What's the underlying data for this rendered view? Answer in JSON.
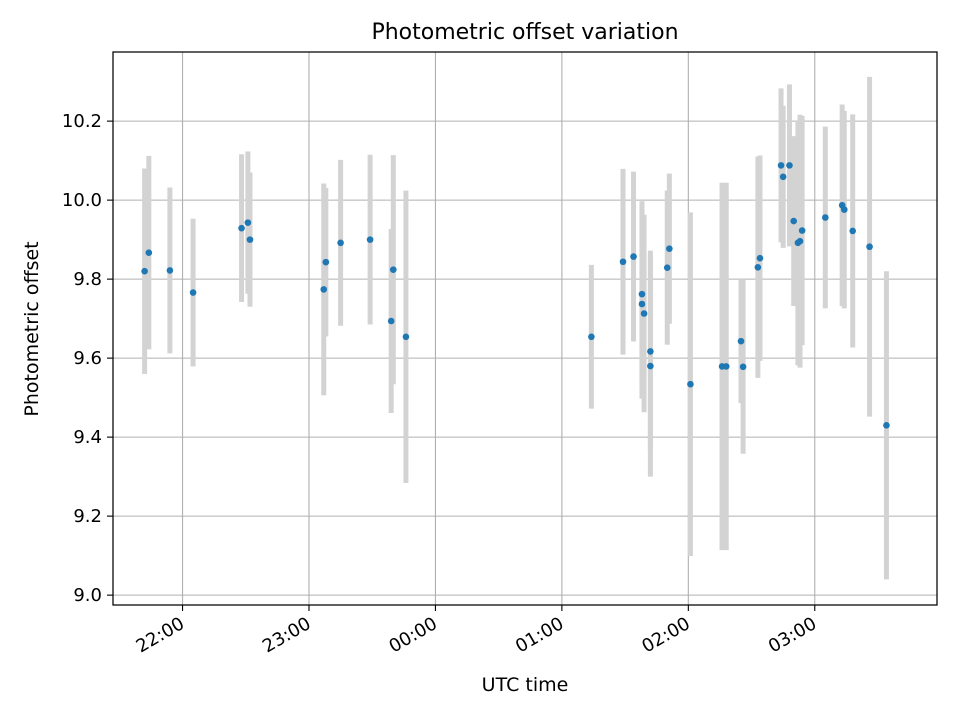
{
  "chart_data": {
    "type": "scatter",
    "title": "Photometric offset variation",
    "xlabel": "UTC time",
    "ylabel": "Photometric offset",
    "x_unit": "HH:MM",
    "x_range": [
      "21:27",
      "03:58"
    ],
    "ylim": [
      8.975,
      10.375
    ],
    "grid": true,
    "x_ticks": [
      "22:00",
      "23:00",
      "00:00",
      "01:00",
      "02:00",
      "03:00"
    ],
    "y_ticks": [
      "9.0",
      "9.2",
      "9.4",
      "9.6",
      "9.8",
      "10.0",
      "10.2"
    ],
    "colors": {
      "point": "#1f77b4",
      "errorbar": "#d3d3d3",
      "grid": "#b0b0b0"
    },
    "points": [
      {
        "x": "21:42",
        "y": 9.82,
        "err": 0.26
      },
      {
        "x": "21:44",
        "y": 9.867,
        "err": 0.245
      },
      {
        "x": "21:54",
        "y": 9.822,
        "err": 0.21
      },
      {
        "x": "22:05",
        "y": 9.766,
        "err": 0.187
      },
      {
        "x": "22:28",
        "y": 9.929,
        "err": 0.187
      },
      {
        "x": "22:31",
        "y": 9.943,
        "err": 0.18
      },
      {
        "x": "22:32",
        "y": 9.9,
        "err": 0.17
      },
      {
        "x": "23:07",
        "y": 9.774,
        "err": 0.268
      },
      {
        "x": "23:08",
        "y": 9.843,
        "err": 0.188
      },
      {
        "x": "23:15",
        "y": 9.892,
        "err": 0.21
      },
      {
        "x": "23:29",
        "y": 9.9,
        "err": 0.215
      },
      {
        "x": "23:39",
        "y": 9.694,
        "err": 0.233
      },
      {
        "x": "23:40",
        "y": 9.824,
        "err": 0.29
      },
      {
        "x": "23:46",
        "y": 9.654,
        "err": 0.37
      },
      {
        "x": "01:14",
        "y": 9.654,
        "err": 0.182
      },
      {
        "x": "01:29",
        "y": 9.844,
        "err": 0.235
      },
      {
        "x": "01:34",
        "y": 9.857,
        "err": 0.215
      },
      {
        "x": "01:38",
        "y": 9.762,
        "err": 0.235
      },
      {
        "x": "01:38",
        "y": 9.737,
        "err": 0.24
      },
      {
        "x": "01:39",
        "y": 9.713,
        "err": 0.25
      },
      {
        "x": "01:42",
        "y": 9.617,
        "err": 0.255
      },
      {
        "x": "01:42",
        "y": 9.58,
        "err": 0.28
      },
      {
        "x": "01:50",
        "y": 9.829,
        "err": 0.195
      },
      {
        "x": "01:51",
        "y": 9.877,
        "err": 0.19
      },
      {
        "x": "02:01",
        "y": 9.534,
        "err": 0.435
      },
      {
        "x": "02:16",
        "y": 9.579,
        "err": 0.465
      },
      {
        "x": "02:18",
        "y": 9.579,
        "err": 0.465
      },
      {
        "x": "02:25",
        "y": 9.643,
        "err": 0.157
      },
      {
        "x": "02:26",
        "y": 9.578,
        "err": 0.22
      },
      {
        "x": "02:33",
        "y": 9.83,
        "err": 0.28
      },
      {
        "x": "02:34",
        "y": 9.853,
        "err": 0.26
      },
      {
        "x": "02:44",
        "y": 10.088,
        "err": 0.195
      },
      {
        "x": "02:45",
        "y": 10.059,
        "err": 0.18
      },
      {
        "x": "02:48",
        "y": 10.088,
        "err": 0.205
      },
      {
        "x": "02:50",
        "y": 9.947,
        "err": 0.215
      },
      {
        "x": "02:52",
        "y": 9.892,
        "err": 0.31
      },
      {
        "x": "02:53",
        "y": 9.896,
        "err": 0.32
      },
      {
        "x": "02:54",
        "y": 9.923,
        "err": 0.29
      },
      {
        "x": "03:05",
        "y": 9.956,
        "err": 0.23
      },
      {
        "x": "03:13",
        "y": 9.987,
        "err": 0.255
      },
      {
        "x": "03:14",
        "y": 9.976,
        "err": 0.25
      },
      {
        "x": "03:18",
        "y": 9.922,
        "err": 0.295
      },
      {
        "x": "03:26",
        "y": 9.882,
        "err": 0.43
      },
      {
        "x": "03:34",
        "y": 9.43,
        "err": 0.39
      }
    ]
  }
}
